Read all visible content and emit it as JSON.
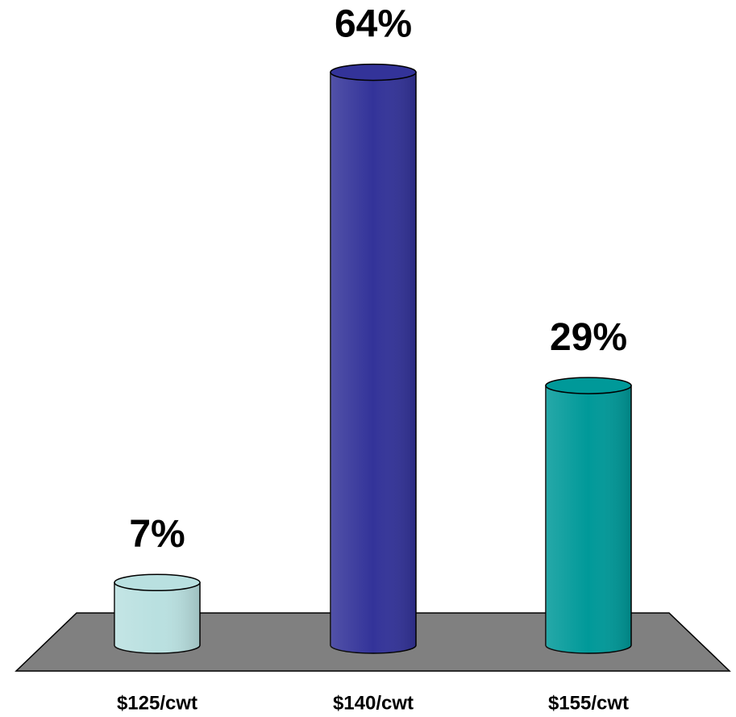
{
  "chart_data": {
    "type": "bar",
    "categories": [
      "$125/cwt",
      "$140/cwt",
      "$155/cwt"
    ],
    "values": [
      7,
      64,
      29
    ],
    "value_labels": [
      "7%",
      "64%",
      "29%"
    ],
    "colors": [
      "#b9e0e0",
      "#333399",
      "#009999"
    ]
  }
}
